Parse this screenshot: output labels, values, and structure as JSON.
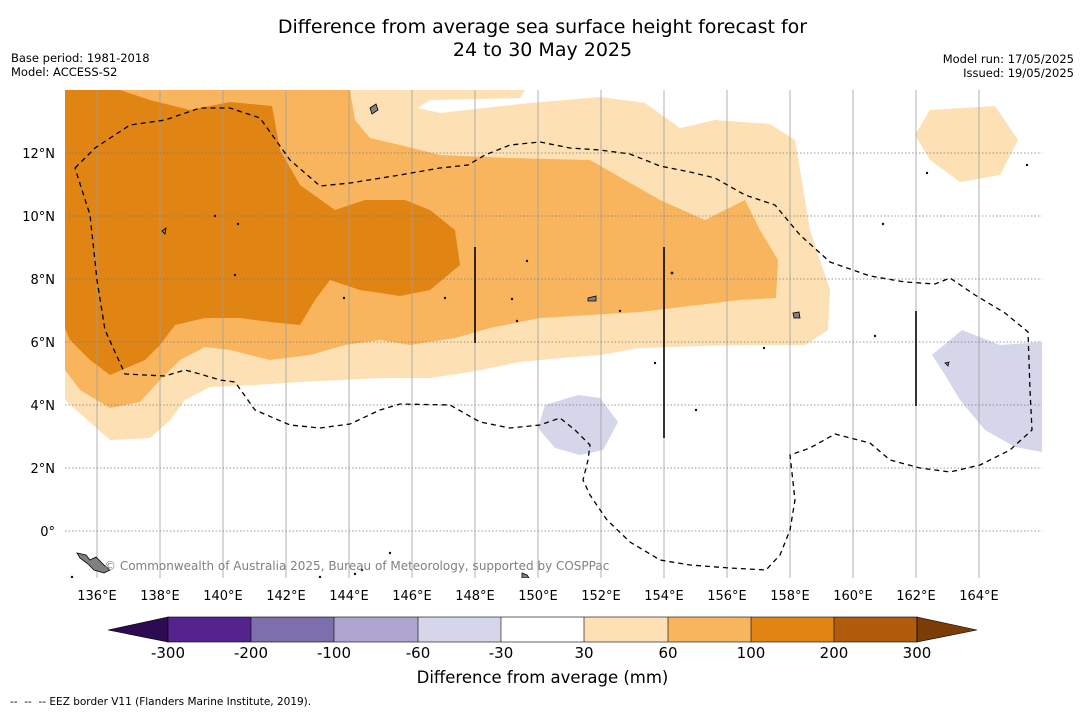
{
  "title": {
    "line1": "Difference from average sea surface height forecast for",
    "line2": "24 to 30 May 2025"
  },
  "meta": {
    "base_period": "Base period: 1981-2018",
    "model": "Model: ACCESS-S2",
    "model_run": "Model run: 17/05/2025",
    "issued": "Issued: 19/05/2025"
  },
  "map": {
    "lon_range": [
      135,
      166
    ],
    "lat_range": [
      -1.5,
      14
    ],
    "lon_ticks": [
      "136°E",
      "138°E",
      "140°E",
      "142°E",
      "144°E",
      "146°E",
      "148°E",
      "150°E",
      "152°E",
      "154°E",
      "156°E",
      "158°E",
      "160°E",
      "162°E",
      "164°E"
    ],
    "lat_ticks": [
      "12°N",
      "10°N",
      "8°N",
      "6°N",
      "4°N",
      "2°N",
      "0°"
    ],
    "credit": "© Commonwealth of Australia 2025, Bureau of Meteorology, supported by COSPPac",
    "colors": {
      "pos_30_60": "#fde0b3",
      "pos_60_100": "#f9b55e",
      "pos_100_200": "#e08414",
      "neg_30_60": "#d6d6ea",
      "land": "#808080",
      "eez_border": "#000000"
    }
  },
  "colorbar": {
    "labels": [
      "-300",
      "-200",
      "-100",
      "-60",
      "-30",
      "30",
      "60",
      "100",
      "200",
      "300"
    ],
    "colors": [
      "#55238d",
      "#7d6fae",
      "#aea6d1",
      "#d6d6ea",
      "#ffffff",
      "#fde0b3",
      "#f9b55e",
      "#e08414",
      "#b05c0c"
    ],
    "under_color": "#2e0a52",
    "over_color": "#7c3c06",
    "title": "Difference from average (mm)"
  },
  "footnote": "--  --  -- EEZ border V11 (Flanders Marine Institute, 2019)."
}
